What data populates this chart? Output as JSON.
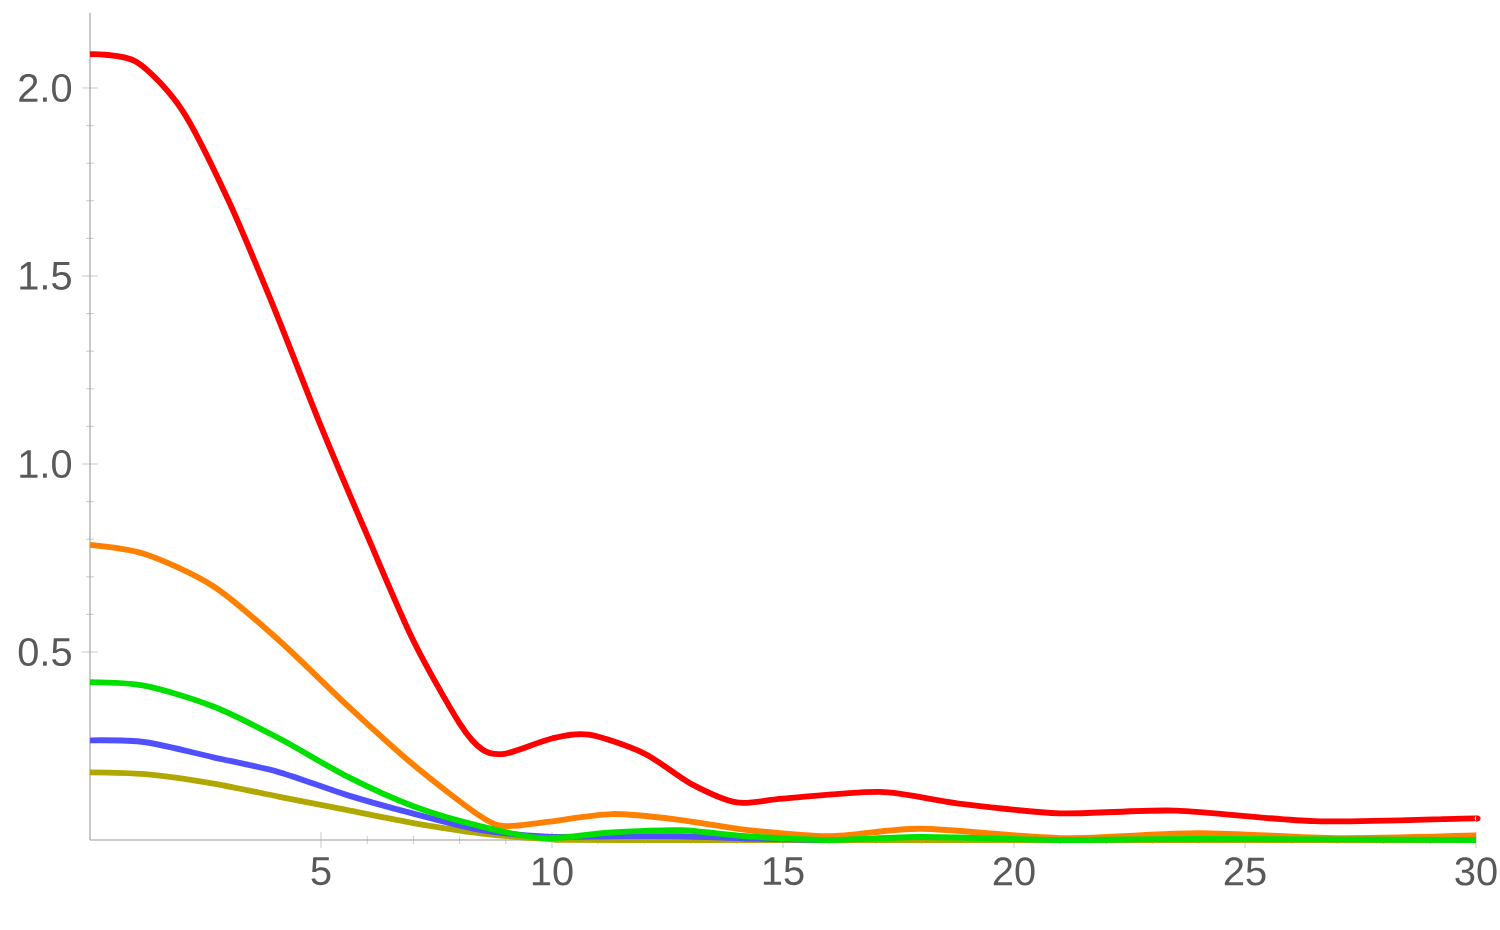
{
  "chart_data": {
    "type": "line",
    "xlim": [
      0,
      30
    ],
    "ylim": [
      0,
      2.2
    ],
    "xticks": [
      5,
      10,
      15,
      20,
      25,
      30
    ],
    "yticks": [
      0.5,
      {
        "value": 1,
        "label": "1.0"
      },
      1.5,
      {
        "value": 2,
        "label": "2.0"
      }
    ],
    "marker": "none",
    "line_style": "solid",
    "series": [
      {
        "color": "#ff0000",
        "x": [
          0,
          1,
          2,
          3,
          4,
          5,
          6,
          7,
          8,
          8.5,
          9,
          10,
          10.8,
          12,
          13,
          14,
          15,
          17.1,
          18.8,
          21,
          23.5,
          26.5,
          29.7,
          30
        ],
        "values": [
          2.09,
          2.07,
          1.94,
          1.7,
          1.41,
          1.1,
          0.81,
          0.53,
          0.31,
          0.24,
          0.23,
          0.27,
          0.28,
          0.23,
          0.15,
          0.1,
          0.11,
          0.128,
          0.097,
          0.071,
          0.078,
          0.05,
          0.057,
          0.057
        ]
      },
      {
        "color": "#ff8000",
        "x": [
          0,
          1.2,
          2.67,
          4.1,
          5.55,
          7,
          8.44,
          9,
          9.9,
          11.3,
          12.8,
          14.2,
          16,
          18,
          21,
          24,
          27,
          30
        ],
        "values": [
          0.785,
          0.76,
          0.675,
          0.53,
          0.36,
          0.2,
          0.064,
          0.037,
          0.048,
          0.069,
          0.053,
          0.027,
          0.01,
          0.03,
          0.005,
          0.018,
          0.005,
          0.012
        ]
      },
      {
        "color": "#00e000",
        "x": [
          0,
          1.2,
          2.67,
          4.1,
          5.55,
          7,
          8.44,
          9.8,
          11.3,
          12.8,
          14.2,
          16,
          18,
          21,
          24,
          30
        ],
        "values": [
          0.42,
          0.41,
          0.355,
          0.27,
          0.17,
          0.09,
          0.037,
          0.005,
          0.02,
          0.026,
          0.01,
          0,
          0.008,
          0,
          0.003,
          0
        ]
      },
      {
        "color": "#5050ff",
        "x": [
          0,
          1.2,
          2.67,
          4.1,
          5.55,
          7,
          8.44,
          9.9,
          11.3,
          12.8,
          14.2,
          16
        ],
        "values": [
          0.265,
          0.26,
          0.22,
          0.18,
          0.12,
          0.07,
          0.027,
          0.009,
          0.01,
          0.01,
          0.004,
          0
        ]
      },
      {
        "color": "#b0a800",
        "x": [
          0,
          1.2,
          2.67,
          4.1,
          5.55,
          7,
          8.44,
          9.9,
          12,
          30
        ],
        "values": [
          0.18,
          0.175,
          0.15,
          0.115,
          0.08,
          0.045,
          0.018,
          0.003,
          0,
          0
        ]
      }
    ]
  }
}
